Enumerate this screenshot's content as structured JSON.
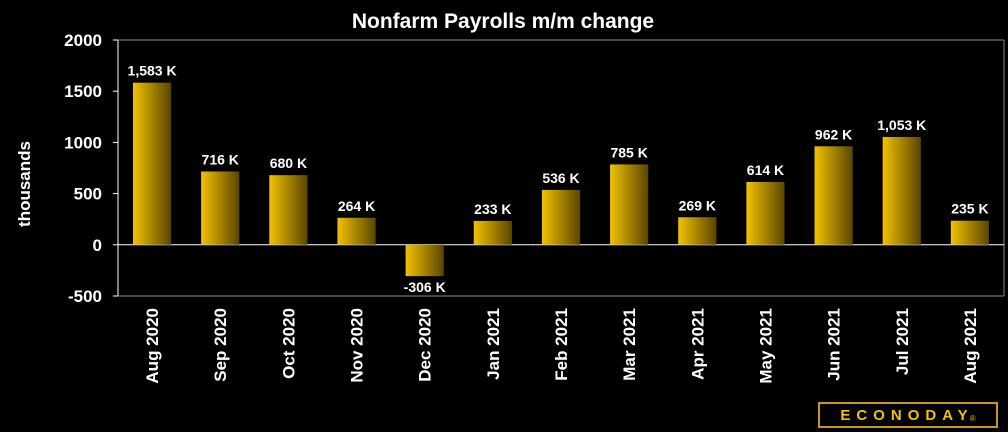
{
  "chart_data": {
    "type": "bar",
    "title": "Nonfarm Payrolls m/m change",
    "ylabel": "thousands",
    "xlabel": "",
    "ylim": [
      -500,
      2000
    ],
    "yticks": [
      2000,
      1500,
      1000,
      500,
      0,
      -500
    ],
    "categories": [
      "Aug 2020",
      "Sep 2020",
      "Oct 2020",
      "Nov 2020",
      "Dec 2020",
      "Jan 2021",
      "Feb 2021",
      "Mar 2021",
      "Apr 2021",
      "May 2021",
      "Jun 2021",
      "Jul 2021",
      "Aug 2021"
    ],
    "values": [
      1583,
      716,
      680,
      264,
      -306,
      233,
      536,
      785,
      269,
      614,
      962,
      1053,
      235
    ],
    "data_labels": [
      "1,583 K",
      "716 K",
      "680 K",
      "264 K",
      "-306 K",
      "233 K",
      "536 K",
      "785 K",
      "269 K",
      "614 K",
      "962 K",
      "1,053 K",
      "235 K"
    ],
    "grid": false,
    "bar_color": "#f2c200",
    "bar_shade": "#5a4500",
    "background": "#000000"
  },
  "logo": {
    "text": "ECONODAY",
    "mark": "®"
  }
}
